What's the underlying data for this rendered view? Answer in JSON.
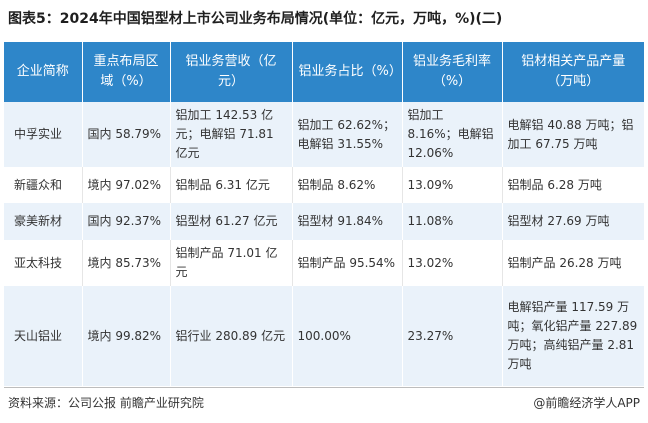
{
  "title": "图表5：2024年中国铝型材上市公司业务布局情况(单位：亿元，万吨，%)(二)",
  "table": {
    "headers": [
      "企业简称",
      "重点布局区域（%）",
      "铝业务营收（亿元）",
      "铝业务占比（%）",
      "铝业务毛利率（%）",
      "铝材相关产品产量（万吨）"
    ],
    "rows": [
      [
        "中孚实业",
        "国内 58.79%",
        "铝加工 142.53 亿元；电解铝 71.81 亿元",
        "铝加工 62.62%；电解铝 31.55%",
        "铝加工 8.16%；电解铝 12.06%",
        "电解铝 40.88 万吨；铝加工 67.75 万吨"
      ],
      [
        "新疆众和",
        "境内 97.02%",
        "铝制品 6.31 亿元",
        "铝制品 8.62%",
        "13.09%",
        "铝制品 6.28 万吨"
      ],
      [
        "豪美新材",
        "国内 92.37%",
        "铝型材 61.27 亿元",
        "铝型材 91.84%",
        "11.08%",
        "铝型材 27.69 万吨"
      ],
      [
        "亚太科技",
        "境内 85.73%",
        "铝制产品 71.01 亿元",
        "铝制产品 95.54%",
        "13.02%",
        "铝制产品 26.28 万吨"
      ],
      [
        "天山铝业",
        "境内 99.82%",
        "铝行业 280.89 亿元",
        "100.00%",
        "23.27%",
        "电解铝产量 117.59 万吨；氧化铝产量 227.89 万吨；高纯铝产量 2.81 万吨"
      ]
    ]
  },
  "footer": {
    "source": "资料来源：公司公报 前瞻产业研究院",
    "brand": "@前瞻经济学人APP"
  },
  "colors": {
    "header_bg": "#2e86c9",
    "odd_row_bg": "#eaf2fa"
  }
}
